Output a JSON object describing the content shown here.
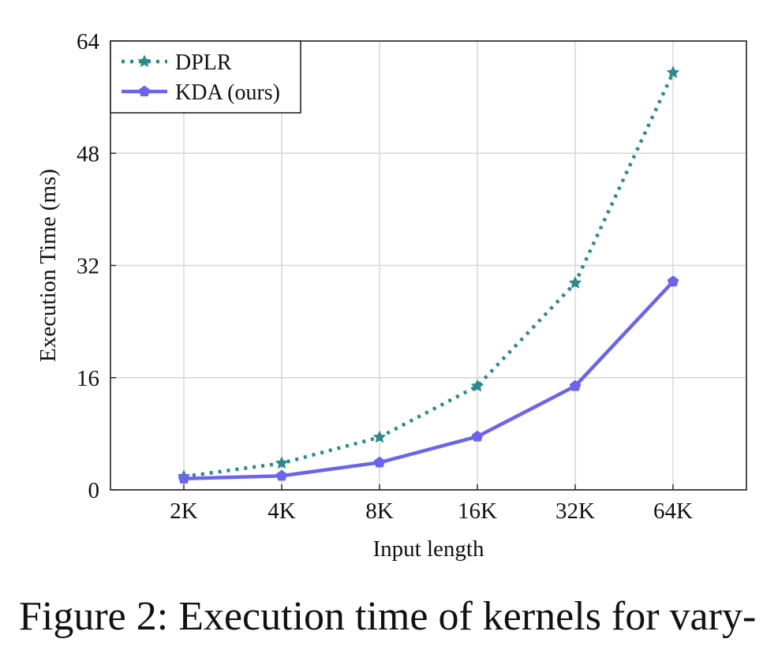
{
  "chart_data": {
    "type": "line",
    "title": "",
    "xlabel": "Input length",
    "ylabel": "Execution Time (ms)",
    "categories": [
      "2K",
      "4K",
      "8K",
      "16K",
      "32K",
      "64K"
    ],
    "ylim": [
      0,
      64
    ],
    "yticks": [
      0,
      16,
      32,
      48,
      64
    ],
    "grid": true,
    "legend_position": "top-left",
    "series": [
      {
        "name": "DPLR",
        "values": [
          1.9,
          3.8,
          7.5,
          14.8,
          29.5,
          59.5
        ],
        "color": "#2b8a8a",
        "line_style": "dotted",
        "marker": "star"
      },
      {
        "name": "KDA (ours)",
        "values": [
          1.6,
          2.0,
          3.9,
          7.6,
          14.8,
          29.7
        ],
        "color": "#6a64ee",
        "line_style": "solid",
        "marker": "pentagon"
      }
    ]
  },
  "caption": "Figure 2: Execution time of kernels for vary-"
}
